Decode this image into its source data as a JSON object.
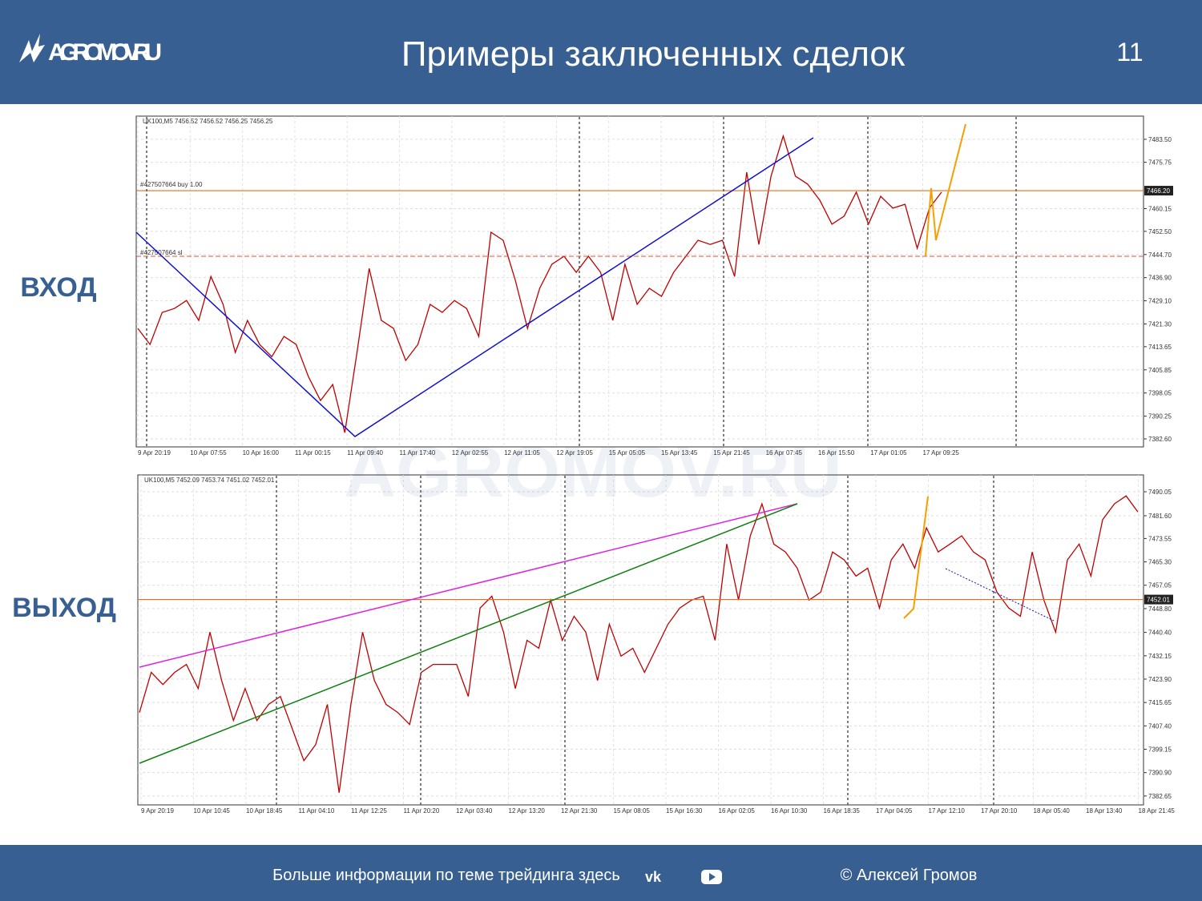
{
  "header": {
    "logo": "AGROMOV.RU",
    "title": "Примеры заключенных сделок",
    "page": "11"
  },
  "labels": {
    "entry": "ВХОД",
    "exit": "ВЫХОД"
  },
  "watermark": "AGROMOV.RU",
  "chart_data": [
    {
      "type": "line",
      "symbol_line": "UK100,M5 7456.52 7456.52 7456.25 7456.25",
      "annotations": [
        "#427507664 buy 1.00",
        "#427507664 sl"
      ],
      "price_label": {
        "value": 7466.2,
        "label": "7466.20"
      },
      "series": [
        {
          "color": "#c00000",
          "values": [
            7419.8,
            7414.4,
            7425.2,
            7426.5,
            7429.2,
            7422.5,
            7437.3,
            7427.9,
            7411.7,
            7422.5,
            7414.4,
            7410.3,
            7417.1,
            7414.4,
            7403.6,
            7395.5,
            7400.9,
            7384.7,
            7411.7,
            7440.0,
            7422.5,
            7419.8,
            7409.0,
            7414.4,
            7427.9,
            7425.2,
            7429.2,
            7426.5,
            7417.1,
            7452.2,
            7449.5,
            7436.0,
            7419.8,
            7433.3,
            7441.4,
            7444.1,
            7438.7,
            7444.1,
            7438.7,
            7422.5,
            7441.4,
            7427.9,
            7433.3,
            7430.6,
            7438.7,
            7444.1,
            7449.5,
            7448.1,
            7449.5,
            7437.3,
            7472.4,
            7448.1,
            7471.1,
            7484.6,
            7471.1,
            7468.4,
            7463.0,
            7454.9,
            7457.6,
            7465.7,
            7454.9,
            7464.3,
            7460.3,
            7461.6,
            7446.8,
            7460.3,
            7465.7
          ]
        }
      ],
      "ylim": [
        7379.9,
        7491.3
      ],
      "yticks": [
        {
          "value": 7483.5,
          "label": "7483.50"
        },
        7475.75,
        7460.15,
        {
          "value": 7452.5,
          "label": "7452.50"
        },
        {
          "value": 7444.7,
          "label": "7444.70"
        },
        {
          "value": 7436.9,
          "label": "7436.90"
        },
        {
          "value": 7429.1,
          "label": "7429.10"
        },
        {
          "value": 7421.3,
          "label": "7421.30"
        },
        7413.65,
        7405.85,
        7398.05,
        7390.25,
        {
          "value": 7382.6,
          "label": "7382.60"
        }
      ],
      "x_labels": [
        "9 Apr 20:19",
        "10 Apr 07:55",
        "10 Apr 16:00",
        "11 Apr 00:15",
        "11 Apr 09:40",
        "11 Apr 17:40",
        "12 Apr 02:55",
        "12 Apr 11:05",
        "12 Apr 19:05",
        "15 Apr 05:05",
        "15 Apr 13:45",
        "15 Apr 21:45",
        "16 Apr 07:45",
        "16 Apr 15:50",
        "17 Apr 01:05",
        "17 Apr 09:25"
      ],
      "grid": true
    },
    {
      "type": "line",
      "symbol_line": "UK100,M5 7452.09 7453.74 7451.02 7452.01",
      "annotations": [],
      "price_label": 7452.01,
      "series": [
        {
          "color": "#c00000",
          "values": [
            7412.1,
            7426.3,
            7422.0,
            7426.3,
            7429.1,
            7420.6,
            7440.5,
            7423.4,
            7409.3,
            7420.6,
            7409.3,
            7415.0,
            7417.8,
            7406.5,
            7395.1,
            7400.8,
            7415.0,
            7383.8,
            7415.0,
            7440.5,
            7423.4,
            7415.0,
            7412.1,
            7407.9,
            7426.3,
            7429.1,
            7429.1,
            7429.1,
            7417.8,
            7449.0,
            7453.2,
            7440.5,
            7420.6,
            7437.6,
            7434.8,
            7451.8,
            7437.6,
            7446.1,
            7440.5,
            7423.4,
            7443.3,
            7432.0,
            7434.8,
            7426.3,
            7434.8,
            7443.3,
            7449.0,
            7451.8,
            7453.2,
            7437.6,
            7471.6,
            7451.8,
            7474.5,
            7485.8,
            7471.6,
            7468.8,
            7463.1,
            7451.8,
            7454.6,
            7468.8,
            7466.0,
            7460.3,
            7463.1,
            7449.0,
            7466.0,
            7471.6,
            7463.1,
            7477.3,
            7468.8,
            7471.6,
            7474.5,
            7468.8,
            7466.0,
            7454.6,
            7449.0,
            7446.1,
            7468.8,
            7451.8,
            7440.5,
            7466.0,
            7471.6,
            7460.3,
            7480.2,
            7485.8,
            7488.6,
            7482.9
          ]
        }
      ],
      "ylim": [
        7379.5,
        7496.0
      ],
      "yticks": [
        7490.05,
        {
          "value": 7481.6,
          "label": "7481.60"
        },
        7473.55,
        {
          "value": 7465.3,
          "label": "7465.30"
        },
        7457.05,
        {
          "value": 7448.8,
          "label": "7448.80"
        },
        {
          "value": 7440.4,
          "label": "7440.40"
        },
        7432.15,
        {
          "value": 7423.9,
          "label": "7423.90"
        },
        7415.65,
        {
          "value": 7407.4,
          "label": "7407.40"
        },
        7399.15,
        {
          "value": 7390.9,
          "label": "7390.90"
        },
        7382.65
      ],
      "x_labels": [
        "9 Apr 20:19",
        "10 Apr 10:45",
        "10 Apr 18:45",
        "11 Apr 04:10",
        "11 Apr 12:25",
        "11 Apr 20:20",
        "12 Apr 03:40",
        "12 Apr 13:20",
        "12 Apr 21:30",
        "15 Apr 08:05",
        "15 Apr 16:30",
        "16 Apr 02:05",
        "16 Apr 10:30",
        "16 Apr 18:35",
        "17 Apr 04:05",
        "17 Apr 12:10",
        "17 Apr 20:10",
        "18 Apr 05:40",
        "18 Apr 13:40",
        "18 Apr 21:45"
      ],
      "grid": true
    }
  ],
  "footer": {
    "text": "Больше информации по теме трейдинга здесь",
    "copyright": "© Алексей Громов"
  }
}
